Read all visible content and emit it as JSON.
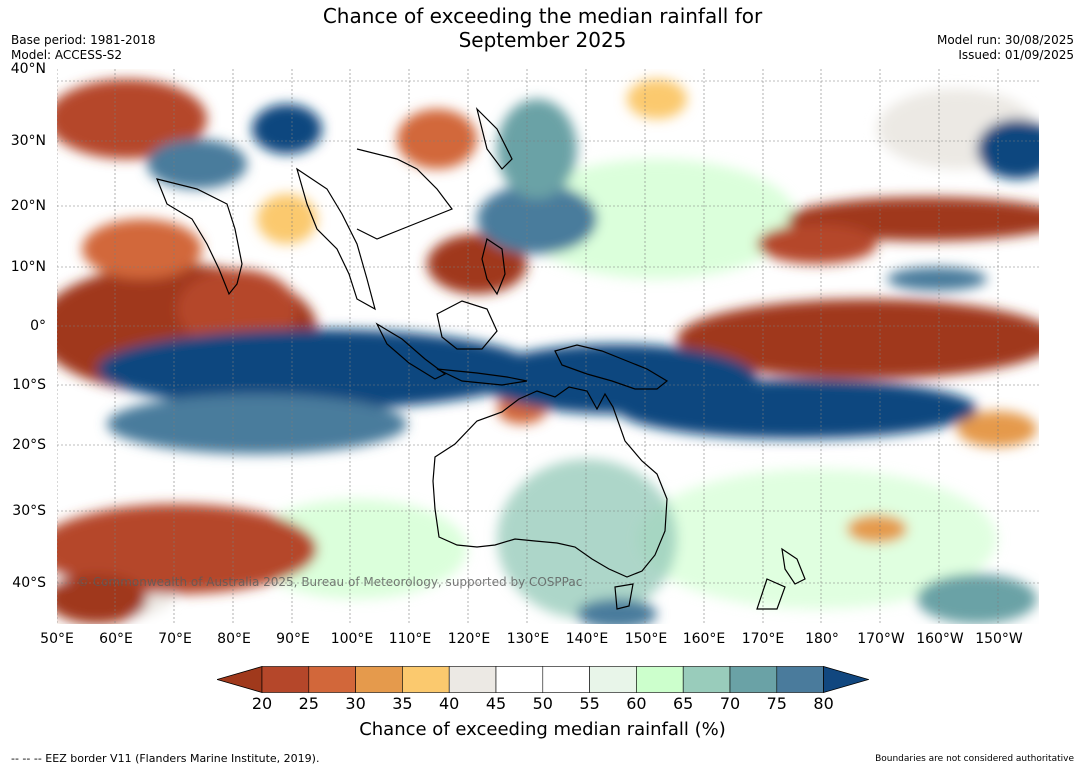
{
  "title_line1": "Chance of exceeding the median rainfall for",
  "title_line2": "September 2025",
  "base_period": "Base period: 1981-2018",
  "model": "Model: ACCESS-S2",
  "model_run": "Model run: 30/08/2025",
  "issued": "Issued: 01/09/2025",
  "copyright": "© Commonwealth of Australia 2025, Bureau of Meteorology, supported by COSPPac",
  "lat_labels": [
    "40°N",
    "30°N",
    "20°N",
    "10°N",
    "0°",
    "10°S",
    "20°S",
    "30°S",
    "40°S"
  ],
  "lon_labels": [
    "50°E",
    "60°E",
    "70°E",
    "80°E",
    "90°E",
    "100°E",
    "110°E",
    "120°E",
    "130°E",
    "140°E",
    "150°E",
    "160°E",
    "170°E",
    "180°",
    "170°W",
    "160°W",
    "150°W"
  ],
  "colorbar": {
    "title": "Chance of exceeding median rainfall (%)",
    "tick_labels": [
      "20",
      "25",
      "30",
      "35",
      "40",
      "45",
      "50",
      "55",
      "60",
      "65",
      "70",
      "75",
      "80"
    ],
    "colors": [
      "#a0391c",
      "#b5472a",
      "#d2673a",
      "#e59a4c",
      "#fbc96e",
      "#ece9e4",
      "#ffffff",
      "#ffffff",
      "#e8f5e9",
      "#ccffcc",
      "#99ccbb",
      "#6aa2a6",
      "#4a7b9c",
      "#11477f"
    ]
  },
  "footer_left": "--  --  -- EEZ border V11 (Flanders Marine Institute, 2019).",
  "footer_right": "Boundaries are not considered authoritative"
}
